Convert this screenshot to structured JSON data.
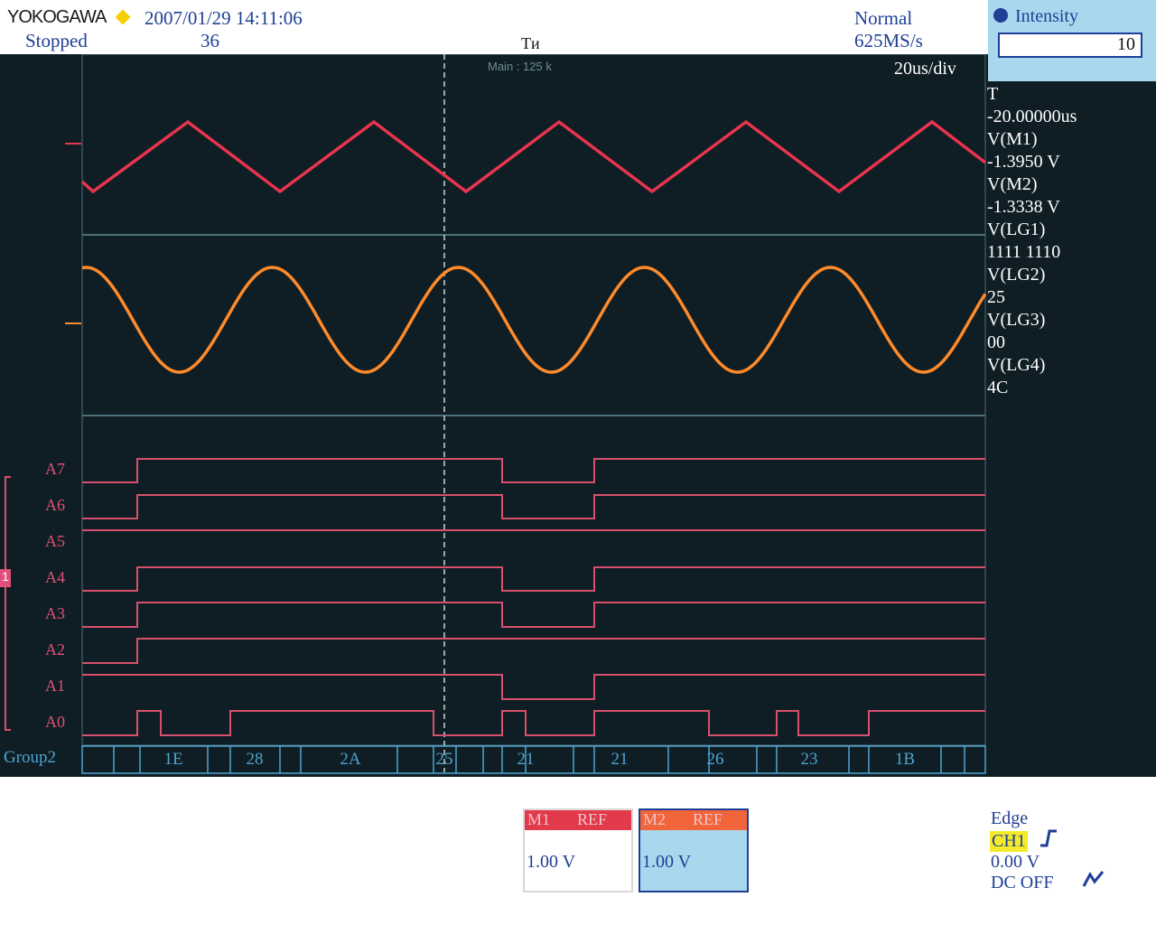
{
  "header": {
    "brand": "YOKOGAWA",
    "datetime": "2007/01/29 14:11:06",
    "status": "Stopped",
    "count": "36",
    "trigger_mode": "Normal",
    "sample_rate": "625MS/s",
    "trigger_marker": "Tи"
  },
  "intensity": {
    "label": "Intensity",
    "value": "10"
  },
  "screen": {
    "time_div": "20us/div",
    "main_label": "Main : 125 k"
  },
  "readout": {
    "rows": [
      "T",
      "-20.00000us",
      "V(M1)",
      "-1.3950 V",
      "V(M2)",
      "-1.3338 V",
      "V(LG1)",
      "1111 1110",
      "V(LG2)",
      "25",
      "V(LG3)",
      "00",
      "V(LG4)",
      "4C"
    ]
  },
  "logic": {
    "channels": [
      "A7",
      "A6",
      "A5",
      "A4",
      "A3",
      "A2",
      "A1",
      "A0"
    ],
    "group_tag": "1",
    "group_label": "Group2",
    "bus_values": [
      "1E",
      "28",
      "2A",
      "25",
      "21",
      "21",
      "26",
      "23",
      "1B"
    ]
  },
  "memory": [
    {
      "name": "M1",
      "ref": "REF",
      "value": "1.00 V",
      "selected": false
    },
    {
      "name": "M2",
      "ref": "REF",
      "value": "1.00 V",
      "selected": true
    }
  ],
  "trigger": {
    "type": "Edge",
    "source": "CH1",
    "level": "0.00 V",
    "coupling": "DC OFF"
  },
  "colors": {
    "screen_bg": "#0f1e24",
    "m1_trace": "#e8344f",
    "m2_trace": "#ff8a2a",
    "logic_trace": "#d8506e",
    "grid": "#4e6f7a",
    "accent_blue": "#1e3f96",
    "panel_blue": "#a9d8ee"
  },
  "icons": {
    "trigger_slope": "rising-edge-icon",
    "trigger_coupling": "zigzag-icon"
  }
}
